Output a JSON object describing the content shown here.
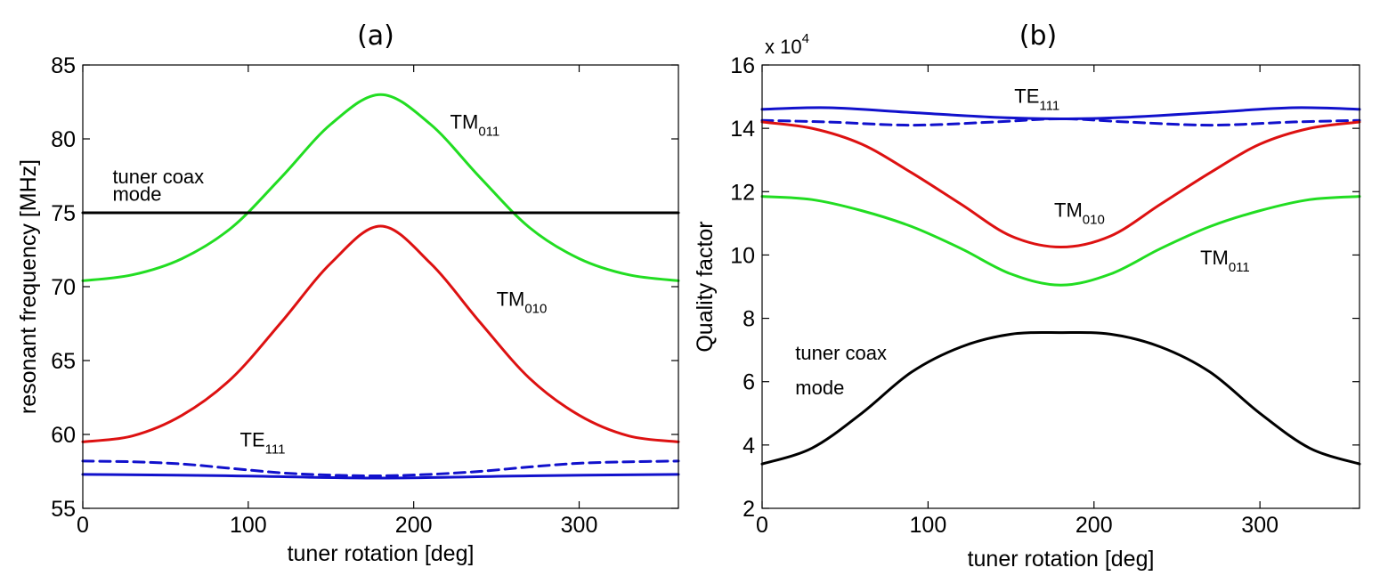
{
  "chart_data": [
    {
      "type": "line",
      "title": "(a)",
      "xlabel": "tuner rotation [deg]",
      "ylabel": "resonant frequency [MHz]",
      "xlim": [
        0,
        360
      ],
      "ylim": [
        55,
        85
      ],
      "xticks": [
        "0",
        "100",
        "200",
        "300"
      ],
      "xtick_values": [
        0,
        100,
        200,
        300
      ],
      "yticks": [
        "55",
        "60",
        "65",
        "70",
        "75",
        "80",
        "85"
      ],
      "ytick_values": [
        55,
        60,
        65,
        70,
        75,
        80,
        85
      ],
      "grid": false,
      "series": [
        {
          "name": "TM011",
          "color": "#22dd22",
          "style": "solid",
          "x": [
            0,
            30,
            60,
            90,
            120,
            150,
            180,
            210,
            240,
            270,
            300,
            330,
            360
          ],
          "y": [
            70.4,
            70.8,
            71.9,
            74.0,
            77.4,
            81.0,
            83.0,
            81.0,
            77.4,
            74.0,
            71.9,
            70.8,
            70.4
          ]
        },
        {
          "name": "tuner coax mode",
          "color": "#000000",
          "style": "solid",
          "x": [
            0,
            360
          ],
          "y": [
            75.0,
            75.0
          ]
        },
        {
          "name": "TM010",
          "color": "#dd1111",
          "style": "solid",
          "x": [
            0,
            30,
            60,
            90,
            120,
            150,
            180,
            210,
            240,
            270,
            300,
            330,
            360
          ],
          "y": [
            59.5,
            59.9,
            61.3,
            63.8,
            67.6,
            71.6,
            74.1,
            71.6,
            67.6,
            63.8,
            61.3,
            59.9,
            59.5
          ]
        },
        {
          "name": "TE111 (dashed)",
          "color": "#1111cc",
          "style": "dashed",
          "x": [
            0,
            30,
            60,
            90,
            120,
            150,
            180,
            210,
            240,
            270,
            300,
            330,
            360
          ],
          "y": [
            58.2,
            58.15,
            58.0,
            57.7,
            57.4,
            57.25,
            57.2,
            57.3,
            57.5,
            57.8,
            58.05,
            58.15,
            58.2
          ]
        },
        {
          "name": "TE111 (solid)",
          "color": "#1111cc",
          "style": "solid",
          "x": [
            0,
            90,
            180,
            270,
            360
          ],
          "y": [
            57.3,
            57.2,
            57.05,
            57.2,
            57.3
          ]
        }
      ],
      "annotations": [
        {
          "text": "TM",
          "sub": "011",
          "x": 222,
          "y": 80.7
        },
        {
          "text": "tuner coax",
          "sub": "",
          "x": 18,
          "y": 77.0
        },
        {
          "text": "mode",
          "sub": "",
          "x": 18,
          "y": 75.8
        },
        {
          "text": "TM",
          "sub": "010",
          "x": 250,
          "y": 68.7
        },
        {
          "text": "TE",
          "sub": "111",
          "x": 95,
          "y": 59.2
        }
      ]
    },
    {
      "type": "line",
      "title": "(b)",
      "xlabel": "tuner rotation [deg]",
      "ylabel": "Quality factor",
      "xlim": [
        0,
        360
      ],
      "ylim": [
        2,
        16
      ],
      "scale_base": "x 10",
      "scale_exponent": "4",
      "xticks": [
        "0",
        "100",
        "200",
        "300"
      ],
      "xtick_values": [
        0,
        100,
        200,
        300
      ],
      "yticks": [
        "2",
        "4",
        "6",
        "8",
        "10",
        "12",
        "14",
        "16"
      ],
      "ytick_values": [
        2,
        4,
        6,
        8,
        10,
        12,
        14,
        16
      ],
      "grid": false,
      "series": [
        {
          "name": "TE111 (solid)",
          "color": "#1111cc",
          "style": "solid",
          "x": [
            0,
            40,
            90,
            140,
            180,
            220,
            270,
            320,
            360
          ],
          "y": [
            14.6,
            14.65,
            14.5,
            14.35,
            14.3,
            14.35,
            14.5,
            14.65,
            14.6
          ]
        },
        {
          "name": "TE111 (dashed)",
          "color": "#1111cc",
          "style": "dashed",
          "x": [
            0,
            40,
            90,
            140,
            180,
            220,
            270,
            320,
            360
          ],
          "y": [
            14.25,
            14.2,
            14.1,
            14.2,
            14.3,
            14.2,
            14.1,
            14.2,
            14.25
          ]
        },
        {
          "name": "TM010",
          "color": "#dd1111",
          "style": "solid",
          "x": [
            0,
            30,
            60,
            90,
            120,
            150,
            180,
            210,
            240,
            270,
            300,
            330,
            360
          ],
          "y": [
            14.2,
            14.0,
            13.5,
            12.6,
            11.6,
            10.6,
            10.25,
            10.6,
            11.6,
            12.6,
            13.5,
            14.0,
            14.2
          ]
        },
        {
          "name": "TM011",
          "color": "#22dd22",
          "style": "solid",
          "x": [
            0,
            30,
            60,
            90,
            120,
            150,
            180,
            210,
            240,
            270,
            300,
            330,
            360
          ],
          "y": [
            11.85,
            11.75,
            11.4,
            10.9,
            10.2,
            9.4,
            9.05,
            9.4,
            10.2,
            10.9,
            11.4,
            11.75,
            11.85
          ]
        },
        {
          "name": "tuner coax mode",
          "color": "#000000",
          "style": "solid",
          "x": [
            0,
            30,
            60,
            90,
            120,
            150,
            180,
            210,
            240,
            270,
            300,
            330,
            360
          ],
          "y": [
            3.4,
            3.9,
            5.0,
            6.3,
            7.1,
            7.5,
            7.55,
            7.5,
            7.1,
            6.3,
            5.0,
            3.9,
            3.4
          ]
        }
      ],
      "annotations": [
        {
          "text": "TE",
          "sub": "111",
          "x": 152,
          "y": 14.8
        },
        {
          "text": "TM",
          "sub": "010",
          "x": 176,
          "y": 11.2
        },
        {
          "text": "TM",
          "sub": "011",
          "x": 264,
          "y": 9.7
        },
        {
          "text": "tuner coax",
          "sub": "",
          "x": 20,
          "y": 6.7
        },
        {
          "text": "mode",
          "sub": "",
          "x": 20,
          "y": 5.6
        }
      ]
    }
  ]
}
